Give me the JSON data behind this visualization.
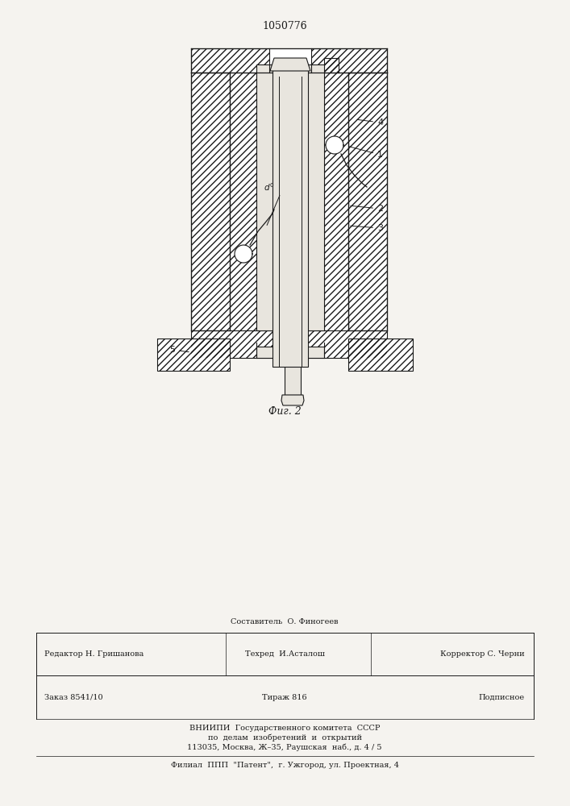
{
  "patent_number": "1050776",
  "fig_label": "Фиг. 2",
  "background_color": "#f5f3ef",
  "line_color": "#1a1a1a",
  "white_color": "#ffffff",
  "light_gray": "#e8e5de",
  "footer_line1": "Составитель  О. Финогеев",
  "footer_editor": "Редактор Н. Гришанова",
  "footer_techred": "Техред  И.Асталош",
  "footer_korr": "Корректор С. Черни",
  "footer_zakaz": "Заказ 8541/10",
  "footer_tirazh": "Тираж 816",
  "footer_podp": "Подписное",
  "footer_vnipi1": "ВНИИПИ  Государственного комитета  СССР",
  "footer_vnipi2": "по  делам  изобретений  и  открытий",
  "footer_addr": "113035, Москва, Ж–35, Раушская  наб., д. 4 / 5",
  "footer_filial": "Филиал  ППП  \"Патент\",  г. Ужгород, ул. Проектная, 4"
}
